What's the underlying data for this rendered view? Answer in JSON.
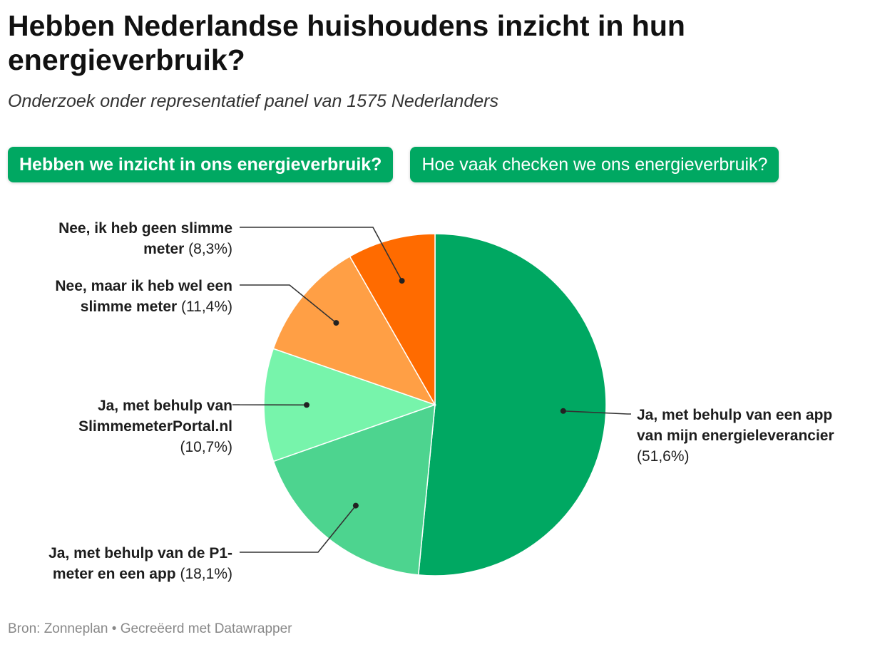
{
  "header": {
    "title": "Hebben Nederlandse huishoudens inzicht in hun energieverbruik?",
    "subtitle": "Onderzoek onder representatief panel van 1575 Nederlanders"
  },
  "tabs": [
    {
      "label": "Hebben we inzicht in ons energieverbruik?",
      "active": true
    },
    {
      "label": "Hoe vaak checken we ons energieverbruik?",
      "active": false
    }
  ],
  "colors": {
    "accent": "#00a862",
    "line": "#333333"
  },
  "chart_data": {
    "type": "pie",
    "slices": [
      {
        "label_lines": [
          "Ja, met behulp van een app",
          "van mijn energieleverancier"
        ],
        "pct_text": "(51,6%)",
        "value": 51.6,
        "color": "#00a862"
      },
      {
        "label_lines": [
          "Ja, met behulp van de P1-",
          "meter en een app"
        ],
        "pct_text": "(18,1%)",
        "value": 18.1,
        "color": "#4dd48f"
      },
      {
        "label_lines": [
          "Ja, met behulp van",
          "SlimmemeterPortal.nl"
        ],
        "pct_text": "(10,7%)",
        "value": 10.7,
        "color": "#77f4ab"
      },
      {
        "label_lines": [
          "Nee, maar ik heb wel een",
          "slimme meter"
        ],
        "pct_text": "(11,4%)",
        "value": 11.4,
        "color": "#ff9f45"
      },
      {
        "label_lines": [
          "Nee, ik heb geen slimme",
          "meter"
        ],
        "pct_text": "(8,3%)",
        "value": 8.3,
        "color": "#ff6b00"
      }
    ]
  },
  "footer": {
    "source": "Bron: Zonneplan • Gecreëerd met Datawrapper"
  }
}
